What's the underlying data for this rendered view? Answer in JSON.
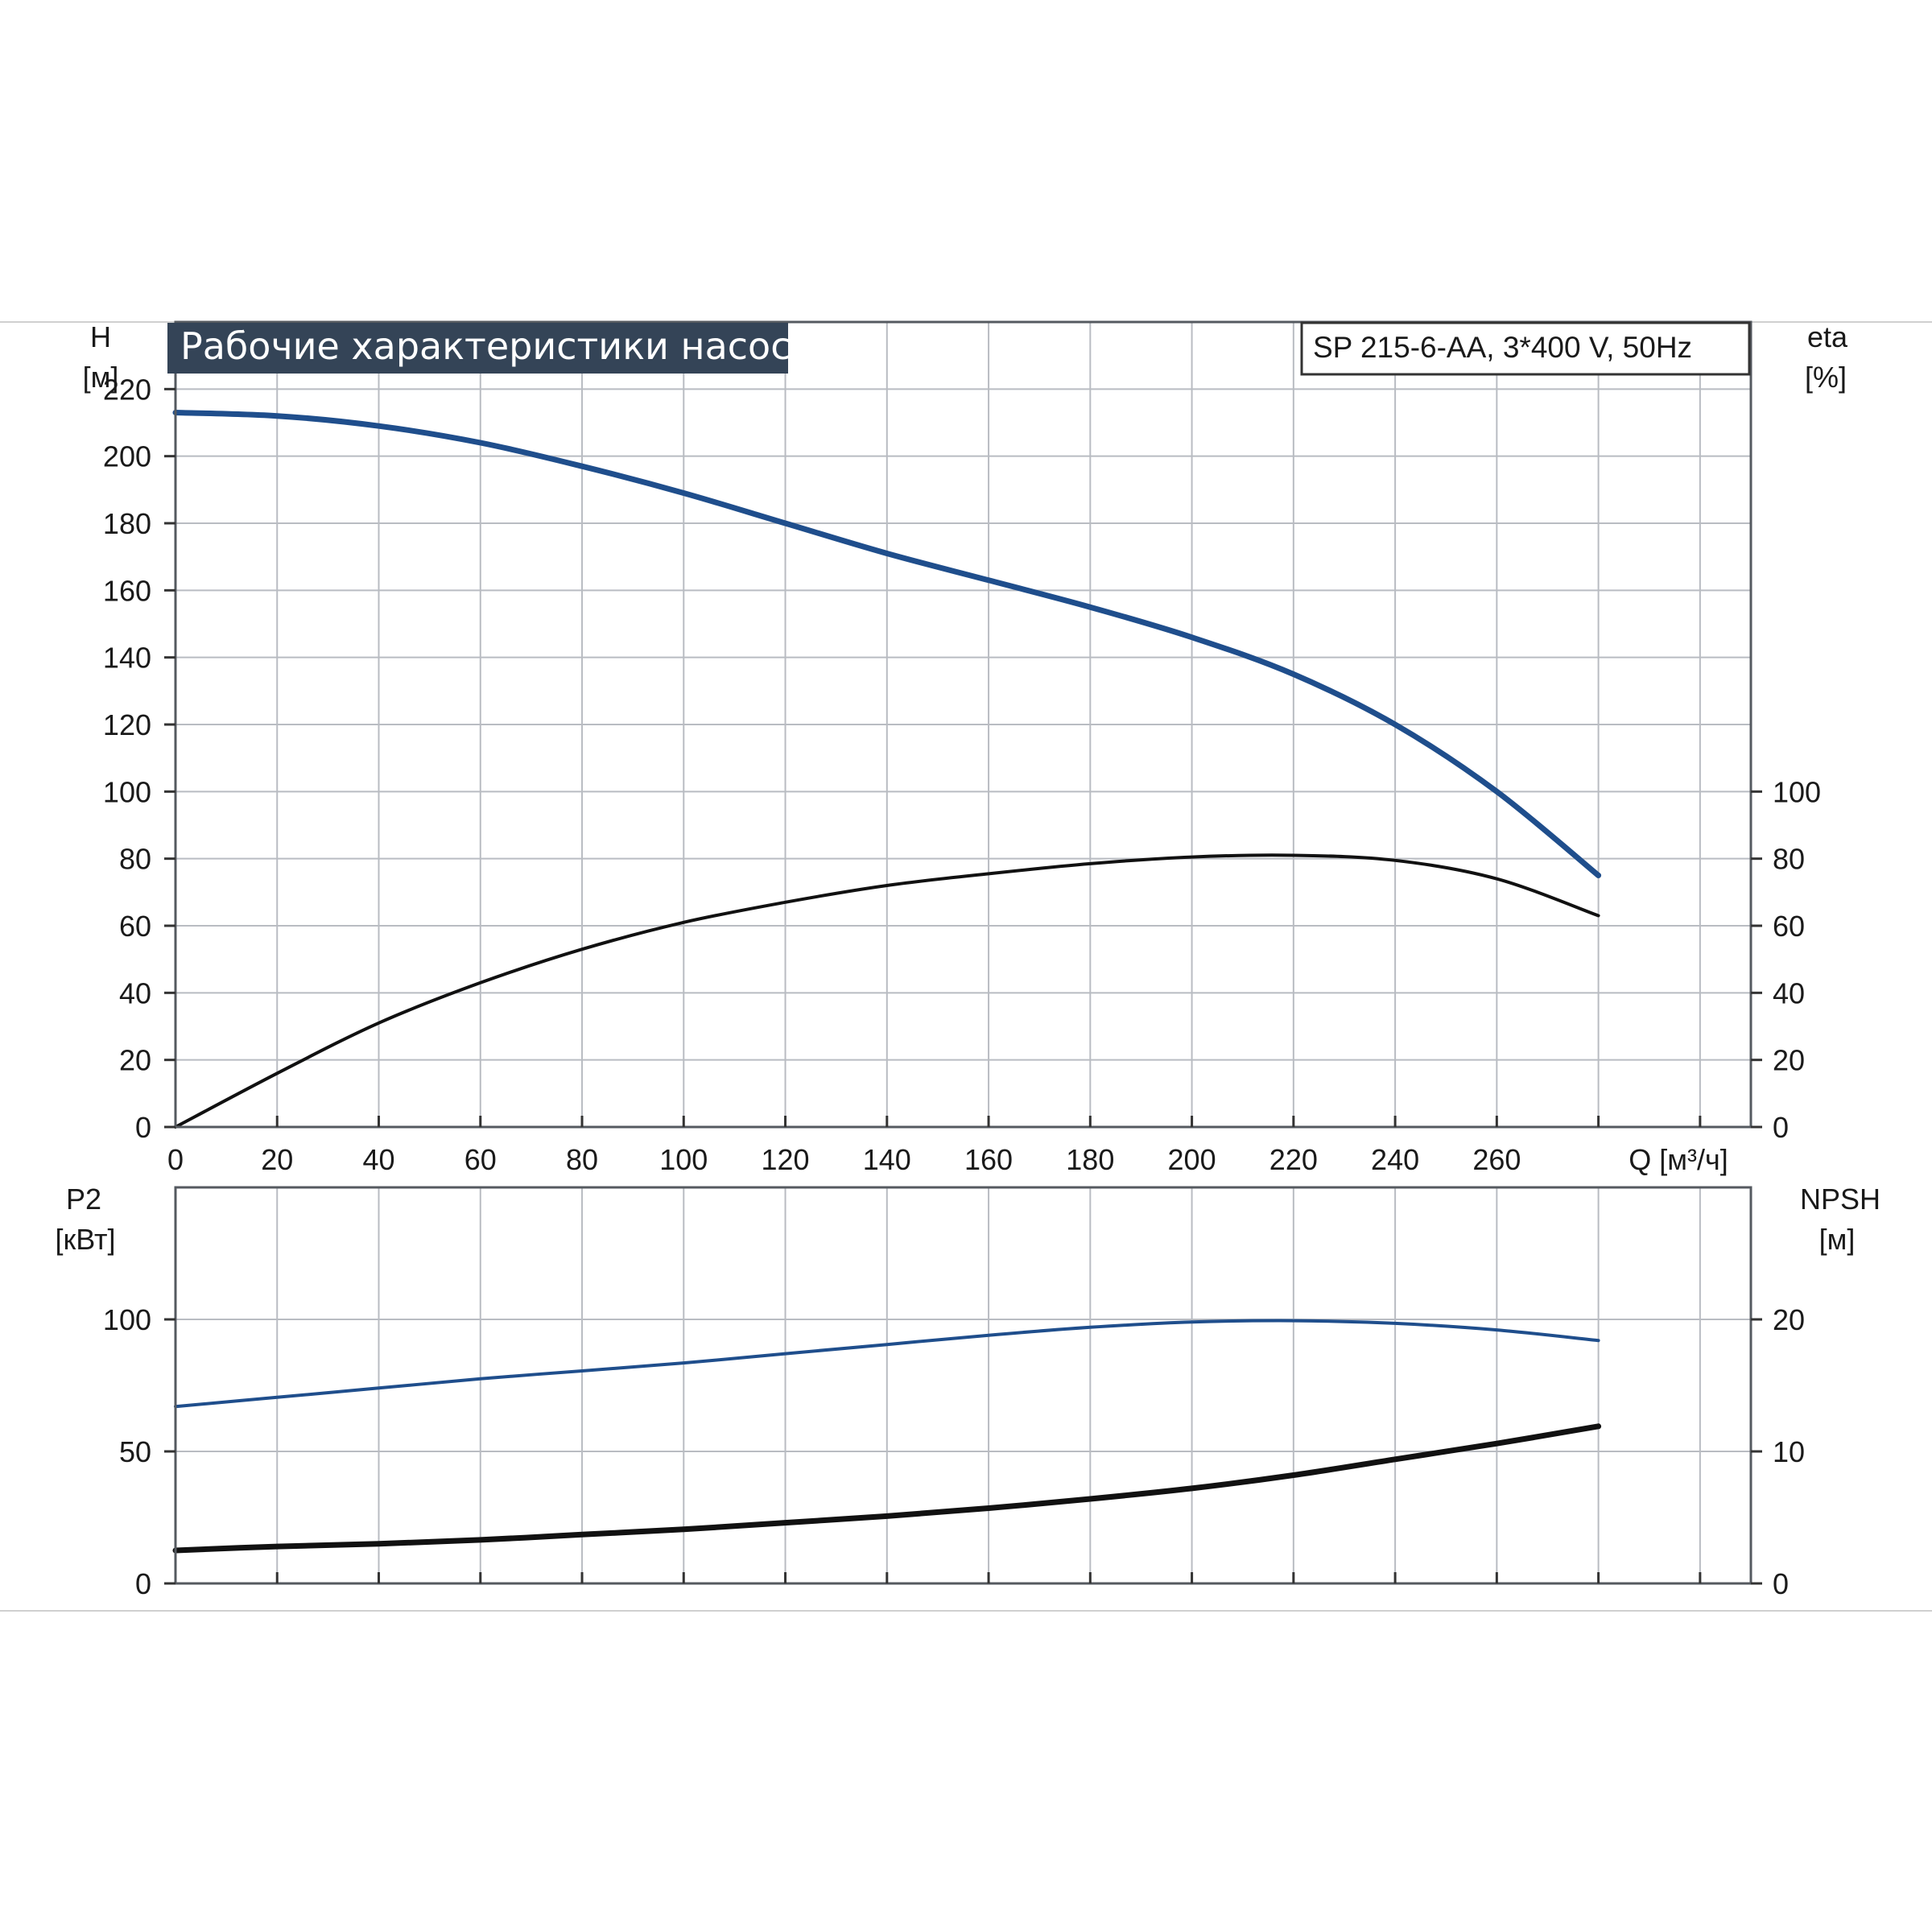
{
  "header": {
    "title": "Рабочие характеристики насоса",
    "model": "SP 215-6-AA, 3*400 V, 50Hz",
    "title_bg": "#344457"
  },
  "chart_data": [
    {
      "type": "line",
      "panel": "top",
      "x_label": "Q [м³/ч]",
      "xlim": [
        0,
        310
      ],
      "x_ticks": [
        "0",
        "20",
        "40",
        "60",
        "80",
        "100",
        "120",
        "140",
        "160",
        "180",
        "200",
        "220",
        "240",
        "260"
      ],
      "y_left": {
        "label": "H",
        "unit": "[м]",
        "lim": [
          0,
          240
        ],
        "ticks": [
          "0",
          "20",
          "40",
          "60",
          "80",
          "100",
          "120",
          "140",
          "160",
          "180",
          "200",
          "220"
        ]
      },
      "y_right": {
        "label": "eta",
        "unit": "[%]",
        "lim": [
          0,
          240
        ],
        "ticks": [
          "0",
          "20",
          "40",
          "60",
          "80",
          "100"
        ]
      },
      "grid": true,
      "series": [
        {
          "axis": "left",
          "color": "#1f4e8c",
          "width": 7,
          "x": [
            0,
            20,
            40,
            60,
            80,
            100,
            120,
            140,
            160,
            180,
            200,
            220,
            240,
            260,
            280
          ],
          "y": [
            213,
            212,
            209,
            204,
            197,
            189,
            180,
            171,
            163,
            155,
            146,
            135,
            120,
            100,
            75
          ]
        },
        {
          "axis": "right",
          "color": "#111111",
          "width": 4,
          "x": [
            0,
            20,
            40,
            60,
            80,
            100,
            120,
            140,
            160,
            180,
            200,
            220,
            240,
            260,
            280
          ],
          "y": [
            0,
            16,
            31,
            43,
            53,
            61,
            67,
            72,
            75.5,
            78.5,
            80.5,
            81,
            79.5,
            74,
            63
          ]
        }
      ]
    },
    {
      "type": "line",
      "panel": "bottom",
      "xlim": [
        0,
        310
      ],
      "y_left": {
        "label": "P2",
        "unit": "[кВт]",
        "lim": [
          0,
          150
        ],
        "ticks": [
          "0",
          "50",
          "100"
        ]
      },
      "y_right": {
        "label": "NPSH",
        "unit": "[м]",
        "lim": [
          0,
          30
        ],
        "ticks": [
          "0",
          "10",
          "20"
        ]
      },
      "grid": true,
      "series": [
        {
          "axis": "left",
          "color": "#1f4e8c",
          "width": 4,
          "x": [
            0,
            20,
            40,
            60,
            80,
            100,
            120,
            140,
            160,
            180,
            200,
            220,
            240,
            260,
            280
          ],
          "y": [
            67,
            70.5,
            74,
            77.5,
            80.5,
            83.5,
            87,
            90.5,
            94,
            97,
            99,
            99.5,
            98.5,
            96,
            92
          ]
        },
        {
          "axis": "right",
          "color": "#111111",
          "width": 7,
          "x": [
            0,
            20,
            40,
            60,
            80,
            100,
            120,
            140,
            160,
            180,
            200,
            220,
            240,
            260,
            280
          ],
          "y": [
            2.5,
            2.8,
            3.0,
            3.3,
            3.7,
            4.1,
            4.6,
            5.1,
            5.7,
            6.4,
            7.2,
            8.2,
            9.4,
            10.6,
            11.9
          ]
        }
      ]
    }
  ]
}
